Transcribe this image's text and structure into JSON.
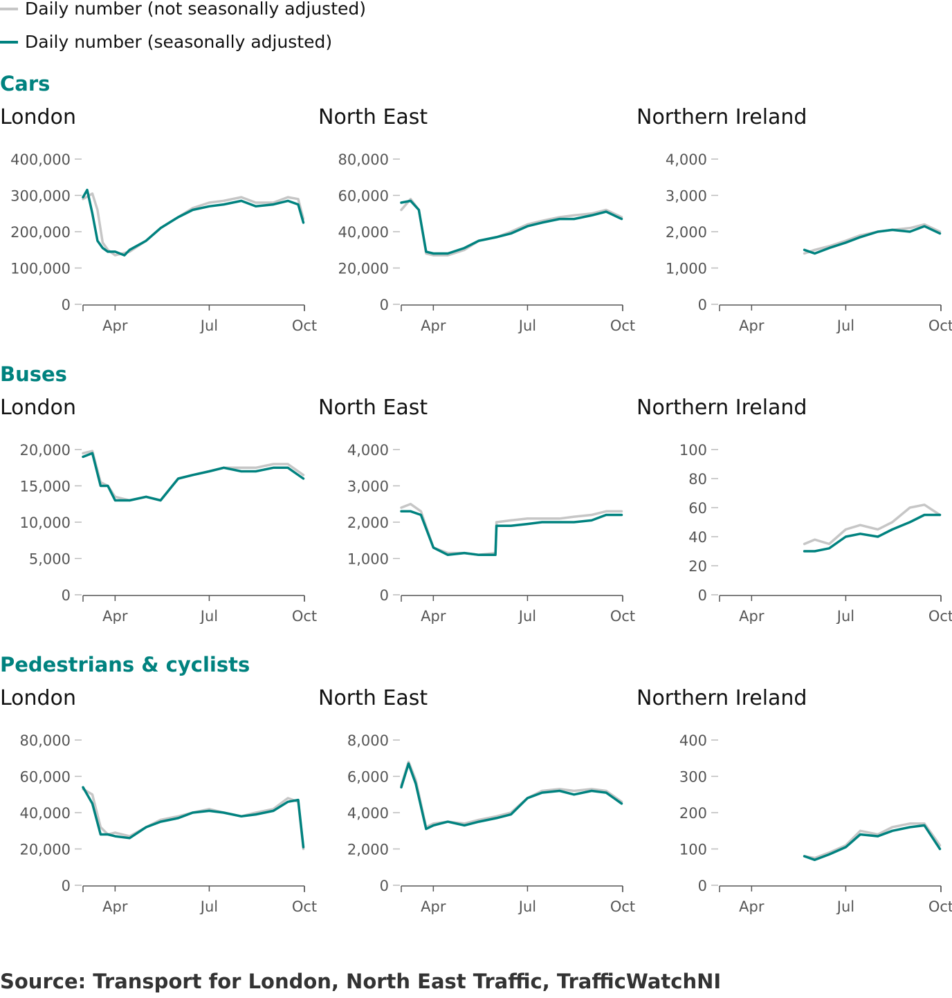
{
  "legend": {
    "items": [
      {
        "label": "Daily number (not seasonally adjusted)",
        "color": "#c6c6c6"
      },
      {
        "label": "Daily number (seasonally adjusted)",
        "color": "#00827f"
      }
    ]
  },
  "colors": {
    "raw": "#c6c6c6",
    "adjusted": "#00827f",
    "section": "#00827f"
  },
  "sections": [
    {
      "title": "Cars"
    },
    {
      "title": "Buses"
    },
    {
      "title": "Pedestrians & cyclists"
    }
  ],
  "source": "Source: Transport for London, North East Traffic, TrafficWatchNI",
  "chart_data": [
    {
      "type": "line",
      "section": "Cars",
      "title": "London",
      "x_ticks": [
        "Apr",
        "Jul",
        "Oct"
      ],
      "y_ticks": [
        "0",
        "100,000",
        "200,000",
        "300,000",
        "400,000"
      ],
      "ylim": [
        0,
        400000
      ],
      "x_start": "2020-03-01",
      "series": [
        {
          "name": "Daily number (not seasonally adjusted)",
          "x": [
            "2020-03-01",
            "2020-03-10",
            "2020-03-15",
            "2020-03-20",
            "2020-03-25",
            "2020-04-01",
            "2020-04-15",
            "2020-05-01",
            "2020-05-15",
            "2020-06-01",
            "2020-06-15",
            "2020-07-01",
            "2020-07-15",
            "2020-08-01",
            "2020-08-15",
            "2020-09-01",
            "2020-09-15",
            "2020-09-25",
            "2020-09-30"
          ],
          "values": [
            290000,
            305000,
            260000,
            170000,
            150000,
            135000,
            145000,
            175000,
            210000,
            240000,
            265000,
            280000,
            285000,
            295000,
            280000,
            280000,
            295000,
            290000,
            235000
          ]
        },
        {
          "name": "Daily number (seasonally adjusted)",
          "x": [
            "2020-03-01",
            "2020-03-05",
            "2020-03-10",
            "2020-03-15",
            "2020-03-20",
            "2020-03-25",
            "2020-04-01",
            "2020-04-10",
            "2020-04-15",
            "2020-05-01",
            "2020-05-15",
            "2020-06-01",
            "2020-06-15",
            "2020-07-01",
            "2020-07-15",
            "2020-08-01",
            "2020-08-15",
            "2020-09-01",
            "2020-09-15",
            "2020-09-25",
            "2020-09-30"
          ],
          "values": [
            295000,
            315000,
            250000,
            175000,
            155000,
            145000,
            145000,
            135000,
            150000,
            175000,
            210000,
            240000,
            260000,
            270000,
            275000,
            285000,
            270000,
            275000,
            285000,
            275000,
            225000
          ]
        }
      ]
    },
    {
      "type": "line",
      "section": "Cars",
      "title": "North East",
      "x_ticks": [
        "Apr",
        "Jul",
        "Oct"
      ],
      "y_ticks": [
        "0",
        "20,000",
        "40,000",
        "60,000",
        "80,000"
      ],
      "ylim": [
        0,
        80000
      ],
      "x_start": "2020-03-01",
      "series": [
        {
          "name": "Daily number (not seasonally adjusted)",
          "x": [
            "2020-03-01",
            "2020-03-10",
            "2020-03-18",
            "2020-03-25",
            "2020-04-01",
            "2020-04-15",
            "2020-05-01",
            "2020-05-15",
            "2020-06-01",
            "2020-06-15",
            "2020-07-01",
            "2020-07-15",
            "2020-08-01",
            "2020-08-15",
            "2020-09-01",
            "2020-09-15",
            "2020-09-30"
          ],
          "values": [
            52000,
            58000,
            52000,
            28000,
            27000,
            27000,
            30000,
            35000,
            37000,
            40000,
            44000,
            46000,
            48000,
            49000,
            50000,
            52000,
            48000
          ]
        },
        {
          "name": "Daily number (seasonally adjusted)",
          "x": [
            "2020-03-01",
            "2020-03-10",
            "2020-03-18",
            "2020-03-25",
            "2020-04-01",
            "2020-04-15",
            "2020-05-01",
            "2020-05-15",
            "2020-06-01",
            "2020-06-15",
            "2020-07-01",
            "2020-07-15",
            "2020-08-01",
            "2020-08-15",
            "2020-09-01",
            "2020-09-15",
            "2020-09-30"
          ],
          "values": [
            56000,
            57000,
            52000,
            29000,
            28000,
            28000,
            31000,
            35000,
            37000,
            39000,
            43000,
            45000,
            47000,
            47000,
            49000,
            51000,
            47000
          ]
        }
      ]
    },
    {
      "type": "line",
      "section": "Cars",
      "title": "Northern Ireland",
      "x_ticks": [
        "Apr",
        "Jul",
        "Oct"
      ],
      "y_ticks": [
        "0",
        "1,000",
        "2,000",
        "3,000",
        "4,000"
      ],
      "ylim": [
        0,
        4000
      ],
      "x_start": "2020-03-01",
      "series": [
        {
          "name": "Daily number (not seasonally adjusted)",
          "x": [
            "2020-05-22",
            "2020-06-01",
            "2020-06-15",
            "2020-07-01",
            "2020-07-15",
            "2020-08-01",
            "2020-08-15",
            "2020-09-01",
            "2020-09-15",
            "2020-09-30"
          ],
          "values": [
            1400,
            1500,
            1600,
            1750,
            1900,
            2000,
            2050,
            2100,
            2200,
            2000
          ]
        },
        {
          "name": "Daily number (seasonally adjusted)",
          "x": [
            "2020-05-22",
            "2020-06-01",
            "2020-06-15",
            "2020-07-01",
            "2020-07-15",
            "2020-08-01",
            "2020-08-15",
            "2020-09-01",
            "2020-09-15",
            "2020-09-30"
          ],
          "values": [
            1500,
            1400,
            1550,
            1700,
            1850,
            2000,
            2050,
            2000,
            2150,
            1950
          ]
        }
      ]
    },
    {
      "type": "line",
      "section": "Buses",
      "title": "London",
      "x_ticks": [
        "Apr",
        "Jul",
        "Oct"
      ],
      "y_ticks": [
        "0",
        "5,000",
        "10,000",
        "15,000",
        "20,000"
      ],
      "ylim": [
        0,
        20000
      ],
      "x_start": "2020-03-01",
      "series": [
        {
          "name": "Daily number (not seasonally adjusted)",
          "x": [
            "2020-03-01",
            "2020-03-10",
            "2020-03-18",
            "2020-03-25",
            "2020-04-01",
            "2020-04-15",
            "2020-05-01",
            "2020-05-15",
            "2020-06-01",
            "2020-06-15",
            "2020-07-01",
            "2020-07-15",
            "2020-08-01",
            "2020-08-15",
            "2020-09-01",
            "2020-09-15",
            "2020-09-30"
          ],
          "values": [
            19500,
            19800,
            15500,
            15000,
            13500,
            13000,
            13500,
            13000,
            16000,
            16500,
            17000,
            17500,
            17500,
            17500,
            18000,
            18000,
            16500
          ]
        },
        {
          "name": "Daily number (seasonally adjusted)",
          "x": [
            "2020-03-01",
            "2020-03-10",
            "2020-03-18",
            "2020-03-25",
            "2020-04-01",
            "2020-04-15",
            "2020-05-01",
            "2020-05-15",
            "2020-06-01",
            "2020-06-15",
            "2020-07-01",
            "2020-07-15",
            "2020-08-01",
            "2020-08-15",
            "2020-09-01",
            "2020-09-15",
            "2020-09-30"
          ],
          "values": [
            19000,
            19500,
            15000,
            15000,
            13000,
            13000,
            13500,
            13000,
            16000,
            16500,
            17000,
            17500,
            17000,
            17000,
            17500,
            17500,
            16000
          ]
        }
      ]
    },
    {
      "type": "line",
      "section": "Buses",
      "title": "North East",
      "x_ticks": [
        "Apr",
        "Jul",
        "Oct"
      ],
      "y_ticks": [
        "0",
        "1,000",
        "2,000",
        "3,000",
        "4,000"
      ],
      "ylim": [
        0,
        4000
      ],
      "x_start": "2020-03-01",
      "series": [
        {
          "name": "Daily number (not seasonally adjusted)",
          "x": [
            "2020-03-01",
            "2020-03-10",
            "2020-03-20",
            "2020-04-01",
            "2020-04-15",
            "2020-05-01",
            "2020-05-15",
            "2020-05-31",
            "2020-06-01",
            "2020-06-15",
            "2020-07-01",
            "2020-07-15",
            "2020-08-01",
            "2020-08-15",
            "2020-09-01",
            "2020-09-15",
            "2020-09-30"
          ],
          "values": [
            2400,
            2500,
            2300,
            1300,
            1150,
            1150,
            1100,
            1150,
            2000,
            2050,
            2100,
            2100,
            2100,
            2150,
            2200,
            2300,
            2300
          ]
        },
        {
          "name": "Daily number (seasonally adjusted)",
          "x": [
            "2020-03-01",
            "2020-03-10",
            "2020-03-20",
            "2020-04-01",
            "2020-04-15",
            "2020-05-01",
            "2020-05-15",
            "2020-05-31",
            "2020-06-01",
            "2020-06-15",
            "2020-07-01",
            "2020-07-15",
            "2020-08-01",
            "2020-08-15",
            "2020-09-01",
            "2020-09-15",
            "2020-09-30"
          ],
          "values": [
            2300,
            2300,
            2200,
            1300,
            1100,
            1150,
            1100,
            1100,
            1900,
            1900,
            1950,
            2000,
            2000,
            2000,
            2050,
            2200,
            2200
          ]
        }
      ]
    },
    {
      "type": "line",
      "section": "Buses",
      "title": "Northern Ireland",
      "x_ticks": [
        "Apr",
        "Jul",
        "Oct"
      ],
      "y_ticks": [
        "0",
        "20",
        "40",
        "60",
        "80",
        "100"
      ],
      "ylim": [
        0,
        100
      ],
      "x_start": "2020-03-01",
      "series": [
        {
          "name": "Daily number (not seasonally adjusted)",
          "x": [
            "2020-05-22",
            "2020-06-01",
            "2020-06-15",
            "2020-07-01",
            "2020-07-15",
            "2020-08-01",
            "2020-08-15",
            "2020-09-01",
            "2020-09-15",
            "2020-09-30"
          ],
          "values": [
            35,
            38,
            35,
            45,
            48,
            45,
            50,
            60,
            62,
            55
          ]
        },
        {
          "name": "Daily number (seasonally adjusted)",
          "x": [
            "2020-05-22",
            "2020-06-01",
            "2020-06-15",
            "2020-07-01",
            "2020-07-15",
            "2020-08-01",
            "2020-08-15",
            "2020-09-01",
            "2020-09-15",
            "2020-09-30"
          ],
          "values": [
            30,
            30,
            32,
            40,
            42,
            40,
            45,
            50,
            55,
            55
          ]
        }
      ]
    },
    {
      "type": "line",
      "section": "Pedestrians & cyclists",
      "title": "London",
      "x_ticks": [
        "Apr",
        "Jul",
        "Oct"
      ],
      "y_ticks": [
        "0",
        "20,000",
        "40,000",
        "60,000",
        "80,000"
      ],
      "ylim": [
        0,
        80000
      ],
      "x_start": "2020-03-01",
      "series": [
        {
          "name": "Daily number (not seasonally adjusted)",
          "x": [
            "2020-03-01",
            "2020-03-10",
            "2020-03-18",
            "2020-03-25",
            "2020-04-01",
            "2020-04-15",
            "2020-05-01",
            "2020-05-15",
            "2020-06-01",
            "2020-06-15",
            "2020-07-01",
            "2020-07-15",
            "2020-08-01",
            "2020-08-15",
            "2020-09-01",
            "2020-09-15",
            "2020-09-25",
            "2020-09-30"
          ],
          "values": [
            53000,
            50000,
            32000,
            28000,
            29000,
            27000,
            32000,
            36000,
            38000,
            40000,
            42000,
            40000,
            38000,
            40000,
            42000,
            48000,
            46000,
            20000
          ]
        },
        {
          "name": "Daily number (seasonally adjusted)",
          "x": [
            "2020-03-01",
            "2020-03-10",
            "2020-03-18",
            "2020-03-25",
            "2020-04-01",
            "2020-04-15",
            "2020-05-01",
            "2020-05-15",
            "2020-06-01",
            "2020-06-15",
            "2020-07-01",
            "2020-07-15",
            "2020-08-01",
            "2020-08-15",
            "2020-09-01",
            "2020-09-15",
            "2020-09-25",
            "2020-09-30"
          ],
          "values": [
            54000,
            45000,
            28000,
            28000,
            27000,
            26000,
            32000,
            35000,
            37000,
            40000,
            41000,
            40000,
            38000,
            39000,
            41000,
            46000,
            47000,
            21000
          ]
        }
      ]
    },
    {
      "type": "line",
      "section": "Pedestrians & cyclists",
      "title": "North East",
      "x_ticks": [
        "Apr",
        "Jul",
        "Oct"
      ],
      "y_ticks": [
        "0",
        "2,000",
        "4,000",
        "6,000",
        "8,000"
      ],
      "ylim": [
        0,
        8000
      ],
      "x_start": "2020-03-01",
      "series": [
        {
          "name": "Daily number (not seasonally adjusted)",
          "x": [
            "2020-03-01",
            "2020-03-08",
            "2020-03-15",
            "2020-03-25",
            "2020-04-01",
            "2020-04-15",
            "2020-05-01",
            "2020-05-15",
            "2020-06-01",
            "2020-06-15",
            "2020-07-01",
            "2020-07-15",
            "2020-08-01",
            "2020-08-15",
            "2020-09-01",
            "2020-09-15",
            "2020-09-30"
          ],
          "values": [
            5500,
            6800,
            5800,
            3200,
            3400,
            3500,
            3400,
            3600,
            3800,
            4000,
            4800,
            5200,
            5300,
            5200,
            5300,
            5200,
            4600
          ]
        },
        {
          "name": "Daily number (seasonally adjusted)",
          "x": [
            "2020-03-01",
            "2020-03-08",
            "2020-03-15",
            "2020-03-25",
            "2020-04-01",
            "2020-04-15",
            "2020-05-01",
            "2020-05-15",
            "2020-06-01",
            "2020-06-15",
            "2020-07-01",
            "2020-07-15",
            "2020-08-01",
            "2020-08-15",
            "2020-09-01",
            "2020-09-15",
            "2020-09-30"
          ],
          "values": [
            5400,
            6700,
            5600,
            3100,
            3300,
            3500,
            3300,
            3500,
            3700,
            3900,
            4800,
            5100,
            5200,
            5000,
            5200,
            5100,
            4500
          ]
        }
      ]
    },
    {
      "type": "line",
      "section": "Pedestrians & cyclists",
      "title": "Northern Ireland",
      "x_ticks": [
        "Apr",
        "Jul",
        "Oct"
      ],
      "y_ticks": [
        "0",
        "100",
        "200",
        "300",
        "400"
      ],
      "ylim": [
        0,
        400
      ],
      "x_start": "2020-03-01",
      "series": [
        {
          "name": "Daily number (not seasonally adjusted)",
          "x": [
            "2020-05-22",
            "2020-06-01",
            "2020-06-15",
            "2020-07-01",
            "2020-07-15",
            "2020-08-01",
            "2020-08-15",
            "2020-09-01",
            "2020-09-15",
            "2020-09-30"
          ],
          "values": [
            80,
            75,
            90,
            110,
            150,
            140,
            160,
            170,
            170,
            110
          ]
        },
        {
          "name": "Daily number (seasonally adjusted)",
          "x": [
            "2020-05-22",
            "2020-06-01",
            "2020-06-15",
            "2020-07-01",
            "2020-07-15",
            "2020-08-01",
            "2020-08-15",
            "2020-09-01",
            "2020-09-15",
            "2020-09-30"
          ],
          "values": [
            80,
            70,
            85,
            105,
            140,
            135,
            150,
            160,
            165,
            100
          ]
        }
      ]
    }
  ]
}
